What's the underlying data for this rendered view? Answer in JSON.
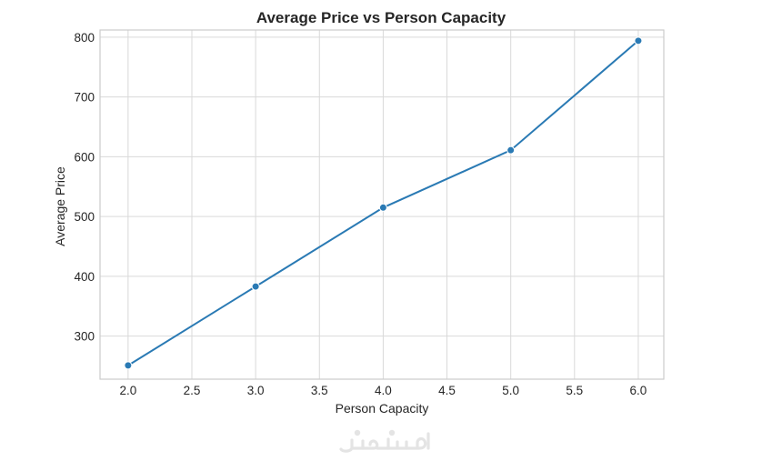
{
  "chart_data": {
    "type": "line",
    "title": "Average Price vs Person Capacity",
    "xlabel": "Person Capacity",
    "ylabel": "Average Price",
    "x": [
      2.0,
      3.0,
      4.0,
      5.0,
      6.0
    ],
    "series": [
      {
        "values": [
          251,
          383,
          515,
          611,
          794
        ],
        "color": "#2a7ab4",
        "marker": "circle"
      }
    ],
    "xlim": [
      1.78,
      6.2
    ],
    "ylim": [
      228,
      812
    ],
    "xticks": [
      2.0,
      2.5,
      3.0,
      3.5,
      4.0,
      4.5,
      5.0,
      5.5,
      6.0
    ],
    "xtick_labels": [
      "2.0",
      "2.5",
      "3.0",
      "3.5",
      "4.0",
      "4.5",
      "5.0",
      "5.5",
      "6.0"
    ],
    "yticks": [
      300,
      400,
      500,
      600,
      700,
      800
    ],
    "ytick_labels": [
      "300",
      "400",
      "500",
      "600",
      "700",
      "800"
    ],
    "grid": true,
    "legend": "none"
  },
  "watermark": {
    "text": "خمسات",
    "color": "#e4e4e4"
  }
}
